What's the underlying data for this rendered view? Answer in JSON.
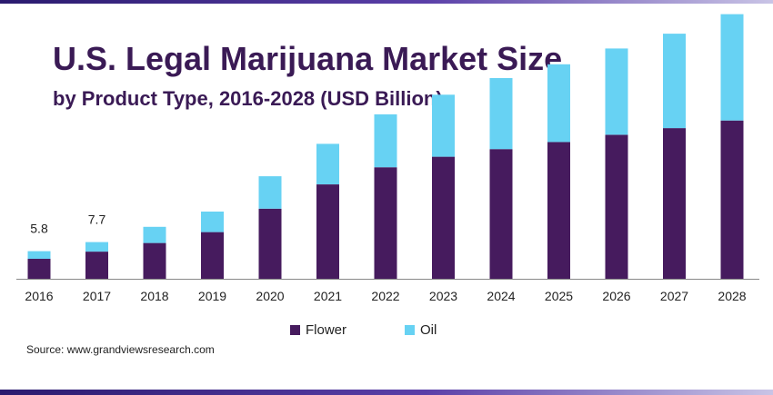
{
  "header": {
    "title": "U.S. Legal Marijuana Market Size",
    "subtitle": "by Product Type, 2016-2028 (USD Billion)"
  },
  "colors": {
    "flower": "#461b5e",
    "oil": "#67d2f3",
    "title_text": "#3a1a55",
    "accent_bar": "#2a1a6e"
  },
  "chart_data": {
    "type": "bar",
    "stacked": true,
    "title": "U.S. Legal Marijuana Market Size",
    "subtitle": "by Product Type, 2016-2028 (USD Billion)",
    "xlabel": "",
    "ylabel": "USD Billion",
    "categories": [
      "2016",
      "2017",
      "2018",
      "2019",
      "2020",
      "2021",
      "2022",
      "2023",
      "2024",
      "2025",
      "2026",
      "2027",
      "2028"
    ],
    "series": [
      {
        "name": "Flower",
        "values": [
          4.2,
          5.7,
          7.5,
          9.8,
          14.7,
          19.8,
          23.4,
          25.6,
          27.2,
          28.7,
          30.2,
          31.6,
          33.2
        ]
      },
      {
        "name": "Oil",
        "values": [
          1.6,
          2.0,
          3.4,
          4.3,
          6.8,
          8.5,
          11.1,
          13.0,
          14.9,
          16.3,
          18.1,
          19.8,
          22.3
        ]
      }
    ],
    "data_labels": [
      {
        "category": "2016",
        "text": "5.8"
      },
      {
        "category": "2017",
        "text": "7.7"
      }
    ],
    "ylim": [
      0,
      56
    ],
    "grid": false,
    "legend": "bottom-center"
  },
  "legend": {
    "items": [
      {
        "label": "Flower"
      },
      {
        "label": "Oil"
      }
    ]
  },
  "source": "Source: www.grandviewsresearch.com"
}
